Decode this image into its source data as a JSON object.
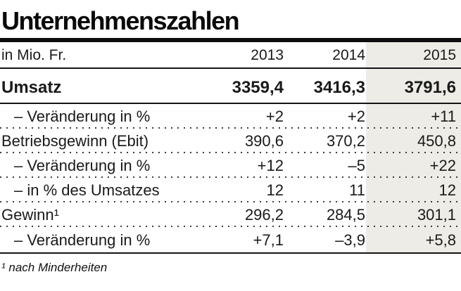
{
  "title": "Unternehmenszahlen",
  "chart_data": {
    "type": "table",
    "title": "Unternehmenszahlen",
    "unit_label": "in Mio. Fr.",
    "columns": [
      "2013",
      "2014",
      "2015"
    ],
    "highlight_column": "2015",
    "rows": [
      {
        "label": "Umsatz",
        "values": [
          "3359,4",
          "3416,3",
          "3791,6"
        ],
        "style": "bold",
        "indent": false,
        "separator_below": "solid"
      },
      {
        "label": "– Veränderung in %",
        "values": [
          "+2",
          "+2",
          "+11"
        ],
        "style": "regular",
        "indent": true,
        "separator_below": "dotted"
      },
      {
        "label": "Betriebsgewinn (Ebit)",
        "values": [
          "390,6",
          "370,2",
          "450,8"
        ],
        "style": "regular",
        "indent": false,
        "separator_below": "dotted"
      },
      {
        "label": "– Veränderung in %",
        "values": [
          "+12",
          "–5",
          "+22"
        ],
        "style": "regular",
        "indent": true,
        "separator_below": "dotted"
      },
      {
        "label": "– in % des Umsatzes",
        "values": [
          "12",
          "11",
          "12"
        ],
        "style": "regular",
        "indent": true,
        "separator_below": "dotted"
      },
      {
        "label": "Gewinn¹",
        "values": [
          "296,2",
          "284,5",
          "301,1"
        ],
        "style": "regular",
        "indent": false,
        "separator_below": "dotted"
      },
      {
        "label": "– Veränderung in %",
        "values": [
          "+7,1",
          "–3,9",
          "+5,8"
        ],
        "style": "regular",
        "indent": true,
        "separator_below": "solid"
      }
    ],
    "footnote": "¹ nach Minderheiten"
  },
  "colors": {
    "highlight_column_bg": "#edece6",
    "rule": "#0d0d0d",
    "text": "#1a1a1a"
  }
}
